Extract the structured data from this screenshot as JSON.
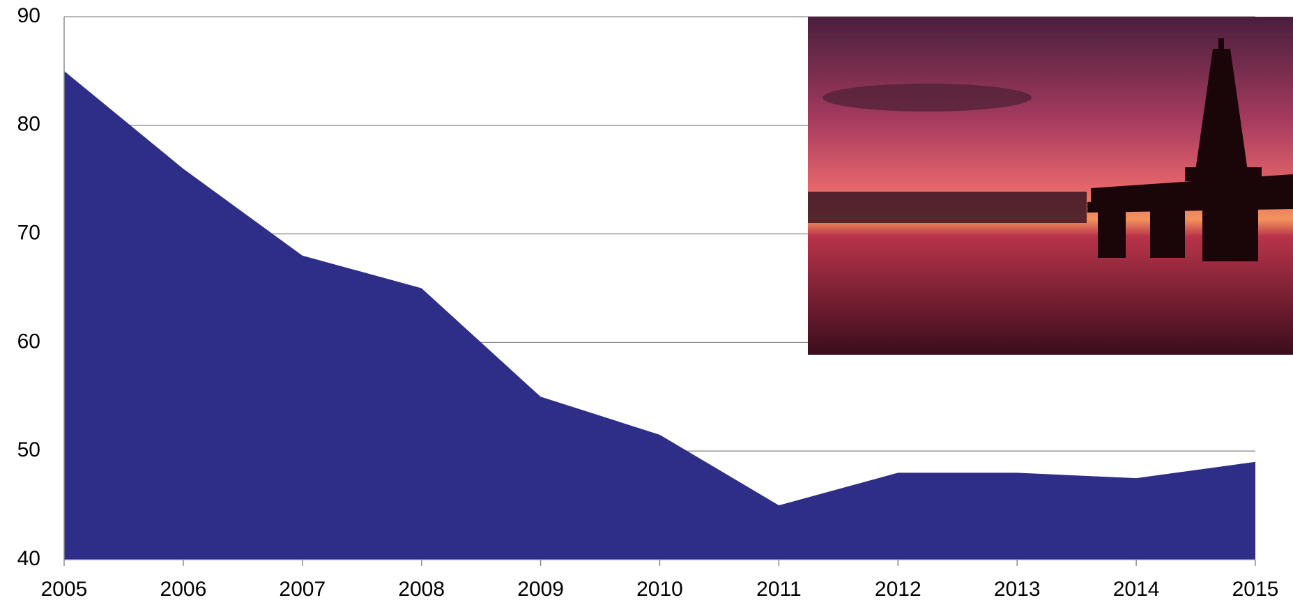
{
  "chart_data": {
    "type": "area",
    "x": [
      2005,
      2006,
      2007,
      2008,
      2009,
      2010,
      2011,
      2012,
      2013,
      2014,
      2015
    ],
    "values": [
      85,
      76,
      68,
      65,
      55,
      51.5,
      45,
      48,
      48,
      47.5,
      49
    ],
    "color": "#2e2d88",
    "xlim": [
      2005,
      2015
    ],
    "xticks": [
      2005,
      2006,
      2007,
      2008,
      2009,
      2010,
      2011,
      2012,
      2013,
      2014,
      2015
    ],
    "ylim": [
      40,
      90
    ],
    "yticks": [
      40,
      50,
      60,
      70,
      80,
      90
    ],
    "grid": true
  }
}
